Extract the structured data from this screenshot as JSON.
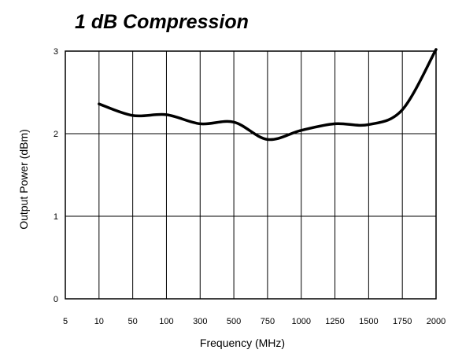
{
  "chart_data": {
    "type": "line",
    "title": "1 dB Compression",
    "xlabel": "Frequency (MHz)",
    "ylabel": "Output Power (dBm)",
    "categories": [
      "5",
      "10",
      "50",
      "100",
      "300",
      "500",
      "750",
      "1000",
      "1250",
      "1500",
      "1750",
      "2000"
    ],
    "y_ticks": [
      {
        "value": 30,
        "label": "3"
      },
      {
        "value": 20,
        "label": "2"
      },
      {
        "value": 10,
        "label": "1"
      },
      {
        "value": 0,
        "label": "0"
      }
    ],
    "ylim": [
      0,
      30
    ],
    "grid": true,
    "series": [
      {
        "x": [
          "10",
          "50",
          "100",
          "300",
          "500",
          "750",
          "1000",
          "1250",
          "1500",
          "1750",
          "2000"
        ],
        "values": [
          23.6,
          22.2,
          22.3,
          21.2,
          21.4,
          19.3,
          20.4,
          21.2,
          21.1,
          22.9,
          30.2
        ]
      }
    ],
    "colors": {
      "line": "#000000",
      "grid": "#000000",
      "background": "#ffffff"
    }
  }
}
